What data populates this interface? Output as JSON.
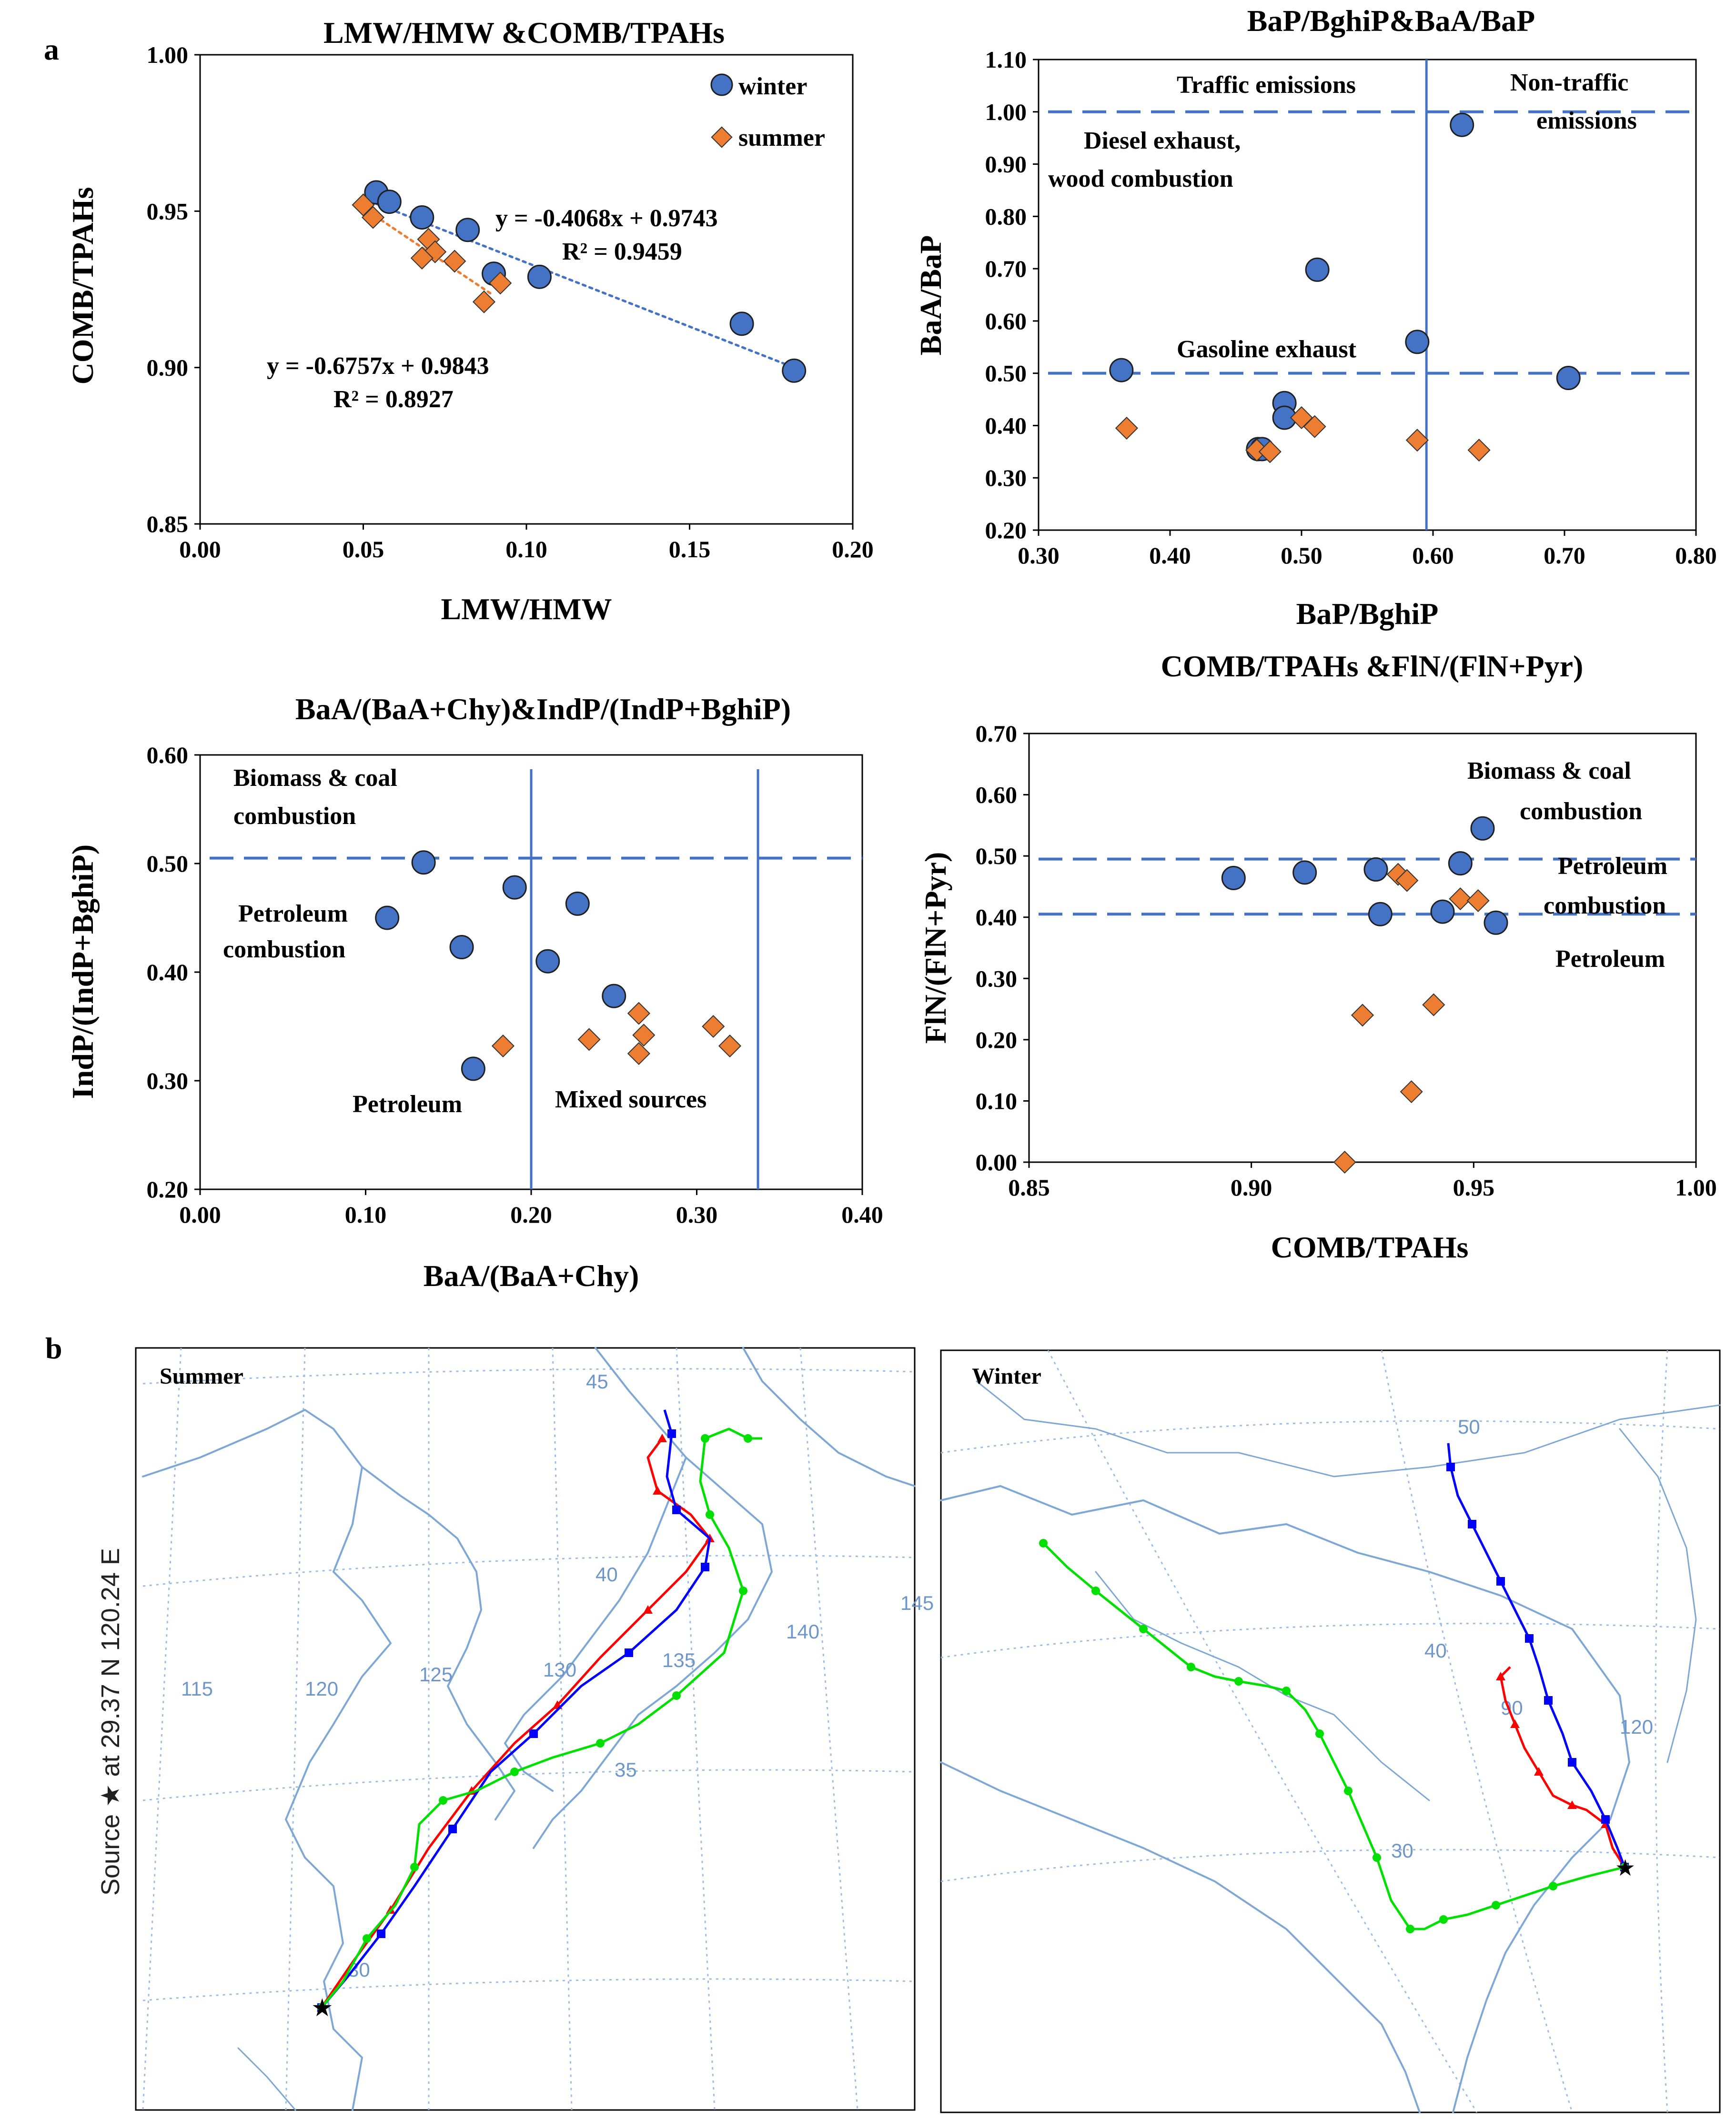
{
  "panel_labels": {
    "a": "a",
    "b": "b"
  },
  "colors": {
    "winter": "#4472C4",
    "summer": "#ED7D31",
    "guide": "#4472C4",
    "map_line": "#7FA7D4",
    "grid": "#9DBCE0",
    "traj_red": "#FF0000",
    "traj_blue": "#0000FF",
    "traj_green": "#00E000"
  },
  "chart_data": [
    {
      "type": "scatter",
      "title": "LMW/HMW &COMB/TPAHs",
      "xlabel": "LMW/HMW",
      "ylabel": "COMB/TPAHs",
      "xlim": [
        0.0,
        0.2
      ],
      "ylim": [
        0.85,
        1.0
      ],
      "xticks": [
        "0.00",
        "0.05",
        "0.10",
        "0.15",
        "0.20"
      ],
      "yticks": [
        "0.85",
        "0.90",
        "0.95",
        "1.00"
      ],
      "legend_position": "top-right",
      "series": [
        {
          "name": "winter",
          "marker": "circle",
          "points": [
            [
              0.054,
              0.956
            ],
            [
              0.058,
              0.953
            ],
            [
              0.068,
              0.948
            ],
            [
              0.082,
              0.944
            ],
            [
              0.09,
              0.93
            ],
            [
              0.104,
              0.929
            ],
            [
              0.166,
              0.914
            ],
            [
              0.182,
              0.899
            ]
          ]
        },
        {
          "name": "summer",
          "marker": "diamond",
          "points": [
            [
              0.05,
              0.952
            ],
            [
              0.053,
              0.948
            ],
            [
              0.07,
              0.941
            ],
            [
              0.072,
              0.937
            ],
            [
              0.068,
              0.935
            ],
            [
              0.078,
              0.934
            ],
            [
              0.092,
              0.927
            ],
            [
              0.087,
              0.921
            ]
          ]
        }
      ],
      "trendlines": [
        {
          "series": "winter",
          "x": [
            0.05,
            0.182
          ],
          "y": [
            0.954,
            0.9
          ]
        },
        {
          "series": "summer",
          "x": [
            0.05,
            0.09
          ],
          "y": [
            0.951,
            0.923
          ]
        }
      ],
      "annotations": [
        "y = -0.4068x + 0.9743",
        "R² = 0.9459",
        "y = -0.6757x + 0.9843",
        "R² = 0.8927"
      ]
    },
    {
      "type": "scatter",
      "title": "BaP/BghiP&BaA/BaP",
      "xlabel": "BaP/BghiP",
      "ylabel": "BaA/BaP",
      "xlim": [
        0.3,
        0.8
      ],
      "ylim": [
        0.2,
        1.1
      ],
      "xticks": [
        "0.30",
        "0.40",
        "0.50",
        "0.60",
        "0.70",
        "0.80"
      ],
      "yticks": [
        "0.20",
        "0.30",
        "0.40",
        "0.50",
        "0.60",
        "0.70",
        "0.80",
        "0.90",
        "1.00",
        "1.10"
      ],
      "series": [
        {
          "name": "winter",
          "marker": "circle",
          "points": [
            [
              0.363,
              0.506
            ],
            [
              0.487,
              0.443
            ],
            [
              0.487,
              0.415
            ],
            [
              0.467,
              0.355
            ],
            [
              0.47,
              0.355
            ],
            [
              0.512,
              0.698
            ],
            [
              0.588,
              0.56
            ],
            [
              0.622,
              0.975
            ],
            [
              0.703,
              0.491
            ]
          ]
        },
        {
          "name": "summer",
          "marker": "diamond",
          "points": [
            [
              0.367,
              0.395
            ],
            [
              0.466,
              0.353
            ],
            [
              0.476,
              0.35
            ],
            [
              0.5,
              0.415
            ],
            [
              0.51,
              0.398
            ],
            [
              0.588,
              0.372
            ],
            [
              0.635,
              0.353
            ]
          ]
        }
      ],
      "reference_lines": {
        "horizontal": [
          1.0,
          0.5
        ],
        "vertical": [
          0.595
        ]
      },
      "annotations": [
        "Traffic emissions",
        "Non-traffic",
        "emissions",
        "Diesel exhaust,",
        "wood combustion",
        "Gasoline exhaust"
      ]
    },
    {
      "type": "scatter",
      "title": "BaA/(BaA+Chy)&IndP/(IndP+BghiP)",
      "xlabel": "BaA/(BaA+Chy)",
      "ylabel": "IndP/(IndP+BghiP)",
      "xlim": [
        0.0,
        0.4
      ],
      "ylim": [
        0.2,
        0.6
      ],
      "xticks": [
        "0.00",
        "0.10",
        "0.20",
        "0.30",
        "0.40"
      ],
      "yticks": [
        "0.20",
        "0.30",
        "0.40",
        "0.50",
        "0.60"
      ],
      "series": [
        {
          "name": "winter",
          "marker": "circle",
          "points": [
            [
              0.113,
              0.45
            ],
            [
              0.135,
              0.501
            ],
            [
              0.158,
              0.423
            ],
            [
              0.19,
              0.478
            ],
            [
              0.228,
              0.463
            ],
            [
              0.21,
              0.41
            ],
            [
              0.25,
              0.378
            ],
            [
              0.165,
              0.311
            ]
          ]
        },
        {
          "name": "summer",
          "marker": "diamond",
          "points": [
            [
              0.183,
              0.332
            ],
            [
              0.235,
              0.338
            ],
            [
              0.265,
              0.362
            ],
            [
              0.268,
              0.342
            ],
            [
              0.265,
              0.325
            ],
            [
              0.31,
              0.35
            ],
            [
              0.32,
              0.332
            ]
          ]
        }
      ],
      "reference_lines": {
        "horizontal": [
          0.505
        ],
        "vertical": [
          0.2,
          0.337
        ]
      },
      "annotations": [
        "Biomass & coal",
        "combustion",
        "Petroleum",
        "combustion",
        "Petroleum",
        "Mixed sources"
      ]
    },
    {
      "type": "scatter",
      "title": "COMB/TPAHs &FlN/(FlN+Pyr)",
      "xlabel": "COMB/TPAHs",
      "ylabel": "FlN/(FlN+Pyr)",
      "xlim": [
        0.85,
        1.0
      ],
      "ylim": [
        0.0,
        0.7
      ],
      "xticks": [
        "0.85",
        "0.90",
        "0.95",
        "1.00"
      ],
      "yticks": [
        "0.00",
        "0.10",
        "0.20",
        "0.30",
        "0.40",
        "0.50",
        "0.60",
        "0.70"
      ],
      "series": [
        {
          "name": "winter",
          "marker": "circle",
          "points": [
            [
              0.896,
              0.464
            ],
            [
              0.912,
              0.473
            ],
            [
              0.928,
              0.478
            ],
            [
              0.929,
              0.405
            ],
            [
              0.943,
              0.409
            ],
            [
              0.947,
              0.488
            ],
            [
              0.952,
              0.545
            ],
            [
              0.955,
              0.391
            ]
          ]
        },
        {
          "name": "summer",
          "marker": "diamond",
          "points": [
            [
              0.921,
              0.0
            ],
            [
              0.925,
              0.24
            ],
            [
              0.933,
              0.47
            ],
            [
              0.935,
              0.46
            ],
            [
              0.936,
              0.115
            ],
            [
              0.941,
              0.257
            ],
            [
              0.947,
              0.43
            ],
            [
              0.951,
              0.427
            ]
          ]
        }
      ],
      "reference_lines": {
        "horizontal": [
          0.495,
          0.405
        ]
      },
      "annotations": [
        "Biomass & coal",
        "combustion",
        "Petroleum",
        "combustion",
        "Petroleum"
      ]
    }
  ],
  "maps": {
    "summer": {
      "title": "Summer",
      "side_label": "Source ★ at 29.37 N 120.24 E",
      "lat_labels": [
        "45",
        "40",
        "35",
        "30"
      ],
      "lon_labels": [
        "115",
        "120",
        "125",
        "130",
        "135",
        "140",
        "145"
      ]
    },
    "winter": {
      "title": "Winter",
      "lat_labels": [
        "50",
        "40",
        "30"
      ],
      "lon_labels": [
        "90",
        "120"
      ]
    }
  }
}
